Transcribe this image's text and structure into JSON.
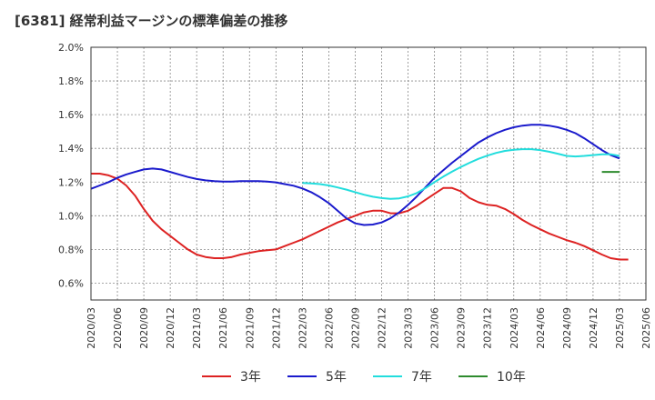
{
  "chart_data": {
    "type": "line",
    "title": "[6381]  経常利益マージンの標準偏差の推移",
    "xlabel": "",
    "ylabel": "",
    "ylim": [
      0.005,
      0.02
    ],
    "y_ticks": [
      "2.0%",
      "1.8%",
      "1.6%",
      "1.4%",
      "1.2%",
      "1.0%",
      "0.8%",
      "0.6%"
    ],
    "y_tick_values": [
      0.02,
      0.018,
      0.016,
      0.014,
      0.012,
      0.01,
      0.008,
      0.006
    ],
    "x_ticks": [
      "2020/03",
      "2020/06",
      "2020/09",
      "2020/12",
      "2021/03",
      "2021/06",
      "2021/09",
      "2021/12",
      "2022/03",
      "2022/06",
      "2022/09",
      "2022/12",
      "2023/03",
      "2023/06",
      "2023/09",
      "2023/12",
      "2024/03",
      "2024/06",
      "2024/09",
      "2024/12",
      "2025/03",
      "2025/06"
    ],
    "grid": true,
    "legend_position": "bottom",
    "series": [
      {
        "name": "3年",
        "color": "#dd2222",
        "points": [
          [
            "2020/03",
            0.0125
          ],
          [
            "2020/04",
            0.0125
          ],
          [
            "2020/05",
            0.0124
          ],
          [
            "2020/06",
            0.0122
          ],
          [
            "2020/07",
            0.0118
          ],
          [
            "2020/08",
            0.0112
          ],
          [
            "2020/09",
            0.0104
          ],
          [
            "2020/10",
            0.0097
          ],
          [
            "2020/11",
            0.0092
          ],
          [
            "2020/12",
            0.0088
          ],
          [
            "2021/01",
            0.0084
          ],
          [
            "2021/02",
            0.008
          ],
          [
            "2021/03",
            0.0077
          ],
          [
            "2021/04",
            0.00755
          ],
          [
            "2021/05",
            0.00748
          ],
          [
            "2021/06",
            0.00748
          ],
          [
            "2021/07",
            0.00755
          ],
          [
            "2021/08",
            0.0077
          ],
          [
            "2021/09",
            0.0078
          ],
          [
            "2021/10",
            0.0079
          ],
          [
            "2021/11",
            0.00795
          ],
          [
            "2021/12",
            0.008
          ],
          [
            "2022/01",
            0.0082
          ],
          [
            "2022/02",
            0.0084
          ],
          [
            "2022/03",
            0.0086
          ],
          [
            "2022/04",
            0.00885
          ],
          [
            "2022/05",
            0.0091
          ],
          [
            "2022/06",
            0.00935
          ],
          [
            "2022/07",
            0.0096
          ],
          [
            "2022/08",
            0.0098
          ],
          [
            "2022/09",
            0.01
          ],
          [
            "2022/10",
            0.0102
          ],
          [
            "2022/11",
            0.0103
          ],
          [
            "2022/12",
            0.0103
          ],
          [
            "2023/01",
            0.01015
          ],
          [
            "2023/02",
            0.01015
          ],
          [
            "2023/03",
            0.0103
          ],
          [
            "2023/04",
            0.0106
          ],
          [
            "2023/05",
            0.01095
          ],
          [
            "2023/06",
            0.0113
          ],
          [
            "2023/07",
            0.01165
          ],
          [
            "2023/08",
            0.01165
          ],
          [
            "2023/09",
            0.01145
          ],
          [
            "2023/10",
            0.01105
          ],
          [
            "2023/11",
            0.0108
          ],
          [
            "2023/12",
            0.01065
          ],
          [
            "2024/01",
            0.0106
          ],
          [
            "2024/02",
            0.0104
          ],
          [
            "2024/03",
            0.0101
          ],
          [
            "2024/04",
            0.00975
          ],
          [
            "2024/05",
            0.00945
          ],
          [
            "2024/06",
            0.0092
          ],
          [
            "2024/07",
            0.00895
          ],
          [
            "2024/08",
            0.00875
          ],
          [
            "2024/09",
            0.00855
          ],
          [
            "2024/10",
            0.0084
          ],
          [
            "2024/11",
            0.0082
          ],
          [
            "2024/12",
            0.00795
          ],
          [
            "2025/01",
            0.0077
          ],
          [
            "2025/02",
            0.00748
          ],
          [
            "2025/03",
            0.0074
          ],
          [
            "2025/04",
            0.0074
          ]
        ]
      },
      {
        "name": "5年",
        "color": "#1a1acc",
        "points": [
          [
            "2020/03",
            0.0116
          ],
          [
            "2020/04",
            0.0118
          ],
          [
            "2020/05",
            0.012
          ],
          [
            "2020/06",
            0.01225
          ],
          [
            "2020/07",
            0.01245
          ],
          [
            "2020/08",
            0.0126
          ],
          [
            "2020/09",
            0.01275
          ],
          [
            "2020/10",
            0.0128
          ],
          [
            "2020/11",
            0.01275
          ],
          [
            "2020/12",
            0.0126
          ],
          [
            "2021/01",
            0.01245
          ],
          [
            "2021/02",
            0.0123
          ],
          [
            "2021/03",
            0.01218
          ],
          [
            "2021/04",
            0.0121
          ],
          [
            "2021/05",
            0.01205
          ],
          [
            "2021/06",
            0.01203
          ],
          [
            "2021/07",
            0.01203
          ],
          [
            "2021/08",
            0.01205
          ],
          [
            "2021/09",
            0.01206
          ],
          [
            "2021/10",
            0.01206
          ],
          [
            "2021/11",
            0.01203
          ],
          [
            "2021/12",
            0.01198
          ],
          [
            "2022/01",
            0.01188
          ],
          [
            "2022/02",
            0.01178
          ],
          [
            "2022/03",
            0.01162
          ],
          [
            "2022/04",
            0.0114
          ],
          [
            "2022/05",
            0.0111
          ],
          [
            "2022/06",
            0.01075
          ],
          [
            "2022/07",
            0.0103
          ],
          [
            "2022/08",
            0.00985
          ],
          [
            "2022/09",
            0.00955
          ],
          [
            "2022/10",
            0.00945
          ],
          [
            "2022/11",
            0.00948
          ],
          [
            "2022/12",
            0.0096
          ],
          [
            "2023/01",
            0.00985
          ],
          [
            "2023/02",
            0.0102
          ],
          [
            "2023/03",
            0.01065
          ],
          [
            "2023/04",
            0.01115
          ],
          [
            "2023/05",
            0.0117
          ],
          [
            "2023/06",
            0.01225
          ],
          [
            "2023/07",
            0.0127
          ],
          [
            "2023/08",
            0.01315
          ],
          [
            "2023/09",
            0.01355
          ],
          [
            "2023/10",
            0.01395
          ],
          [
            "2023/11",
            0.01435
          ],
          [
            "2023/12",
            0.01465
          ],
          [
            "2024/01",
            0.0149
          ],
          [
            "2024/02",
            0.0151
          ],
          [
            "2024/03",
            0.01525
          ],
          [
            "2024/04",
            0.01535
          ],
          [
            "2024/05",
            0.0154
          ],
          [
            "2024/06",
            0.0154
          ],
          [
            "2024/07",
            0.01535
          ],
          [
            "2024/08",
            0.01525
          ],
          [
            "2024/09",
            0.0151
          ],
          [
            "2024/10",
            0.0149
          ],
          [
            "2024/11",
            0.0146
          ],
          [
            "2024/12",
            0.01425
          ],
          [
            "2025/01",
            0.0139
          ],
          [
            "2025/02",
            0.0136
          ],
          [
            "2025/03",
            0.0134
          ]
        ]
      },
      {
        "name": "7年",
        "color": "#22dddd",
        "points": [
          [
            "2022/03",
            0.01195
          ],
          [
            "2022/04",
            0.01192
          ],
          [
            "2022/05",
            0.01188
          ],
          [
            "2022/06",
            0.0118
          ],
          [
            "2022/07",
            0.01168
          ],
          [
            "2022/08",
            0.01155
          ],
          [
            "2022/09",
            0.0114
          ],
          [
            "2022/10",
            0.01125
          ],
          [
            "2022/11",
            0.01113
          ],
          [
            "2022/12",
            0.01105
          ],
          [
            "2023/01",
            0.011
          ],
          [
            "2023/02",
            0.01103
          ],
          [
            "2023/03",
            0.01115
          ],
          [
            "2023/04",
            0.01135
          ],
          [
            "2023/05",
            0.01165
          ],
          [
            "2023/06",
            0.012
          ],
          [
            "2023/07",
            0.01232
          ],
          [
            "2023/08",
            0.01262
          ],
          [
            "2023/09",
            0.0129
          ],
          [
            "2023/10",
            0.01315
          ],
          [
            "2023/11",
            0.01338
          ],
          [
            "2023/12",
            0.01357
          ],
          [
            "2024/01",
            0.01373
          ],
          [
            "2024/02",
            0.01385
          ],
          [
            "2024/03",
            0.01392
          ],
          [
            "2024/04",
            0.01395
          ],
          [
            "2024/05",
            0.01395
          ],
          [
            "2024/06",
            0.0139
          ],
          [
            "2024/07",
            0.0138
          ],
          [
            "2024/08",
            0.01368
          ],
          [
            "2024/09",
            0.01355
          ],
          [
            "2024/10",
            0.01352
          ],
          [
            "2024/11",
            0.01355
          ],
          [
            "2024/12",
            0.0136
          ],
          [
            "2025/01",
            0.01365
          ],
          [
            "2025/02",
            0.01365
          ],
          [
            "2025/03",
            0.01355
          ]
        ]
      },
      {
        "name": "10年",
        "color": "#2e8b2e",
        "points": [
          [
            "2025/01",
            0.0126
          ],
          [
            "2025/02",
            0.0126
          ],
          [
            "2025/03",
            0.0126
          ]
        ]
      }
    ]
  }
}
